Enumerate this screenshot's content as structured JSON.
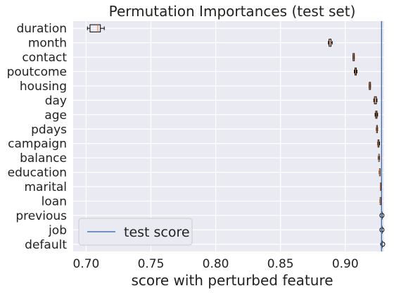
{
  "chart_data": {
    "type": "boxplot",
    "orientation": "horizontal",
    "title": "Permutation Importances (test set)",
    "xlabel": "score with perturbed feature",
    "ylabel": "",
    "xlim": [
      0.69,
      0.93
    ],
    "xticks": [
      "0.70",
      "0.75",
      "0.80",
      "0.85",
      "0.90"
    ],
    "xtick_values": [
      0.7,
      0.75,
      0.8,
      0.85,
      0.9
    ],
    "grid": true,
    "legend": {
      "position": "bottom-left",
      "entries": [
        "test score"
      ]
    },
    "reference_line": {
      "name": "test score",
      "x": 0.928,
      "color": "#4c72b0"
    },
    "colors": {
      "background": "#eaeaf2",
      "grid": "#ffffff",
      "median": "#e07b39",
      "box": "#000000"
    },
    "features": [
      {
        "name": "duration",
        "whislo": 0.701,
        "q1": 0.703,
        "med": 0.709,
        "q3": 0.711,
        "whishi": 0.714,
        "fliers": []
      },
      {
        "name": "month",
        "whislo": 0.887,
        "q1": 0.8875,
        "med": 0.888,
        "q3": 0.889,
        "whishi": 0.89,
        "fliers": []
      },
      {
        "name": "contact",
        "whislo": 0.906,
        "q1": 0.906,
        "med": 0.9065,
        "q3": 0.907,
        "whishi": 0.907,
        "fliers": []
      },
      {
        "name": "poutcome",
        "whislo": 0.907,
        "q1": 0.9075,
        "med": 0.908,
        "q3": 0.9085,
        "whishi": 0.909,
        "fliers": []
      },
      {
        "name": "housing",
        "whislo": 0.9185,
        "q1": 0.9185,
        "med": 0.919,
        "q3": 0.9195,
        "whishi": 0.9195,
        "fliers": []
      },
      {
        "name": "day",
        "whislo": 0.922,
        "q1": 0.9225,
        "med": 0.923,
        "q3": 0.924,
        "whishi": 0.9245,
        "fliers": []
      },
      {
        "name": "age",
        "whislo": 0.923,
        "q1": 0.9235,
        "med": 0.924,
        "q3": 0.9245,
        "whishi": 0.925,
        "fliers": []
      },
      {
        "name": "pdays",
        "whislo": 0.924,
        "q1": 0.9242,
        "med": 0.9245,
        "q3": 0.9248,
        "whishi": 0.925,
        "fliers": []
      },
      {
        "name": "campaign",
        "whislo": 0.925,
        "q1": 0.9252,
        "med": 0.9255,
        "q3": 0.926,
        "whishi": 0.9265,
        "fliers": []
      },
      {
        "name": "balance",
        "whislo": 0.9255,
        "q1": 0.9258,
        "med": 0.926,
        "q3": 0.9262,
        "whishi": 0.9265,
        "fliers": []
      },
      {
        "name": "education",
        "whislo": 0.9262,
        "q1": 0.9264,
        "med": 0.9265,
        "q3": 0.9266,
        "whishi": 0.9268,
        "fliers": []
      },
      {
        "name": "marital",
        "whislo": 0.927,
        "q1": 0.927,
        "med": 0.927,
        "q3": 0.927,
        "whishi": 0.927,
        "fliers": []
      },
      {
        "name": "loan",
        "whislo": 0.9268,
        "q1": 0.9269,
        "med": 0.927,
        "q3": 0.9271,
        "whishi": 0.9272,
        "fliers": []
      },
      {
        "name": "previous",
        "whislo": 0.928,
        "q1": 0.928,
        "med": 0.928,
        "q3": 0.928,
        "whishi": 0.928,
        "fliers": [
          0.9283
        ]
      },
      {
        "name": "job",
        "whislo": 0.928,
        "q1": 0.928,
        "med": 0.928,
        "q3": 0.928,
        "whishi": 0.928,
        "fliers": [
          0.9283
        ]
      },
      {
        "name": "default",
        "whislo": 0.928,
        "q1": 0.928,
        "med": 0.928,
        "q3": 0.928,
        "whishi": 0.928,
        "fliers": [
          0.9289
        ]
      }
    ]
  }
}
